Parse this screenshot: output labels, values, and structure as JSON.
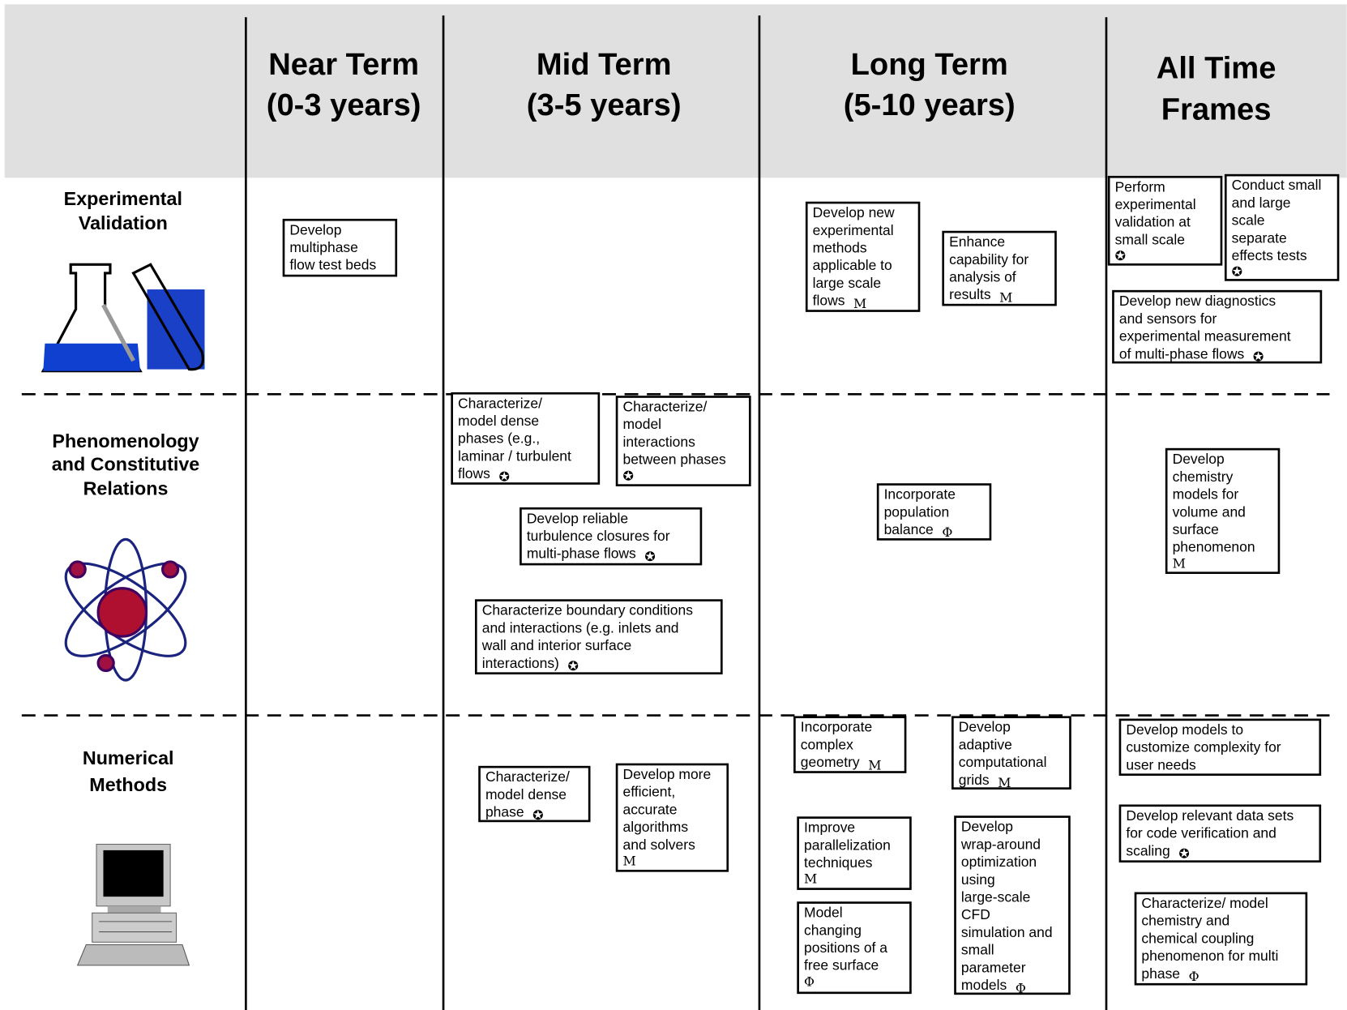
{
  "header": {
    "columns": [
      {
        "lines": [
          "Near Term",
          "(0-3 years)"
        ]
      },
      {
        "lines": [
          "Mid Term",
          "(3-5 years)"
        ]
      },
      {
        "lines": [
          "Long Term",
          "(5-10 years)"
        ]
      },
      {
        "lines": [
          "All Time",
          "Frames"
        ]
      }
    ]
  },
  "rows": [
    {
      "lines": [
        "Experimental",
        "Validation"
      ]
    },
    {
      "lines": [
        "Phenomenology",
        "and Constitutive",
        "Relations"
      ]
    },
    {
      "lines": [
        "Numerical",
        "Methods"
      ]
    }
  ],
  "boxes": [
    {
      "lines": [
        "Develop",
        "multiphase",
        "flow test beds"
      ]
    },
    {
      "lines": [
        "Develop new",
        "experimental",
        "methods",
        "applicable to",
        "large scale",
        "flows"
      ],
      "marker": "M"
    },
    {
      "lines": [
        "Enhance",
        "capability for",
        "analysis of",
        "results"
      ],
      "marker": "M"
    },
    {
      "lines": [
        "Perform",
        "experimental",
        "validation at",
        "small scale"
      ],
      "marker": "✪"
    },
    {
      "lines": [
        "Conduct small",
        "and large",
        "scale",
        "separate",
        "effects tests"
      ],
      "marker": "✪"
    },
    {
      "lines": [
        "Develop new diagnostics",
        "and sensors for",
        "experimental measurement",
        "of multi-phase flows"
      ],
      "marker": "✪"
    },
    {
      "lines": [
        "Characterize/",
        "model dense",
        "phases (e.g.,",
        "laminar / turbulent",
        "flows"
      ],
      "marker": "✪"
    },
    {
      "lines": [
        "Characterize/",
        "model",
        "interactions",
        "between phases"
      ],
      "marker": "✪"
    },
    {
      "lines": [
        "Develop reliable",
        "turbulence closures for",
        "multi-phase flows"
      ],
      "marker": "✪"
    },
    {
      "lines": [
        "Characterize boundary conditions",
        "and interactions (e.g. inlets and",
        "wall and interior surface",
        "interactions)"
      ],
      "marker": "✪"
    },
    {
      "lines": [
        "Incorporate",
        "population",
        "balance"
      ],
      "marker": "Φ"
    },
    {
      "lines": [
        "Develop",
        "chemistry",
        "models for",
        "volume and",
        "surface",
        "phenomenon"
      ],
      "marker": "M"
    },
    {
      "lines": [
        "Incorporate",
        "complex",
        "geometry"
      ],
      "marker": "M"
    },
    {
      "lines": [
        "Develop",
        "adaptive",
        "computational",
        "grids"
      ],
      "marker": "M"
    },
    {
      "lines": [
        "Develop models to",
        "customize complexity for",
        "user needs"
      ]
    },
    {
      "lines": [
        "Characterize/",
        "model dense",
        "phase"
      ],
      "marker": "✪"
    },
    {
      "lines": [
        "Develop more",
        "efficient,",
        "accurate",
        "algorithms",
        "and solvers"
      ],
      "marker": "M"
    },
    {
      "lines": [
        "Improve",
        "parallelization",
        "techniques"
      ],
      "marker": "M"
    },
    {
      "lines": [
        "Develop",
        "wrap-around",
        "optimization",
        "using",
        "large-scale",
        "CFD",
        "simulation and",
        "small",
        "parameter",
        "models"
      ],
      "marker": "Φ"
    },
    {
      "lines": [
        "Develop relevant data sets",
        "for code verification and",
        "scaling"
      ],
      "marker": "✪"
    },
    {
      "lines": [
        "Model",
        "changing",
        "positions of a",
        "free surface"
      ],
      "marker": "Φ"
    },
    {
      "lines": [
        "Characterize/ model",
        "chemistry and",
        "chemical coupling",
        "phenomenon for multi",
        "phase"
      ],
      "marker": "Φ"
    }
  ]
}
